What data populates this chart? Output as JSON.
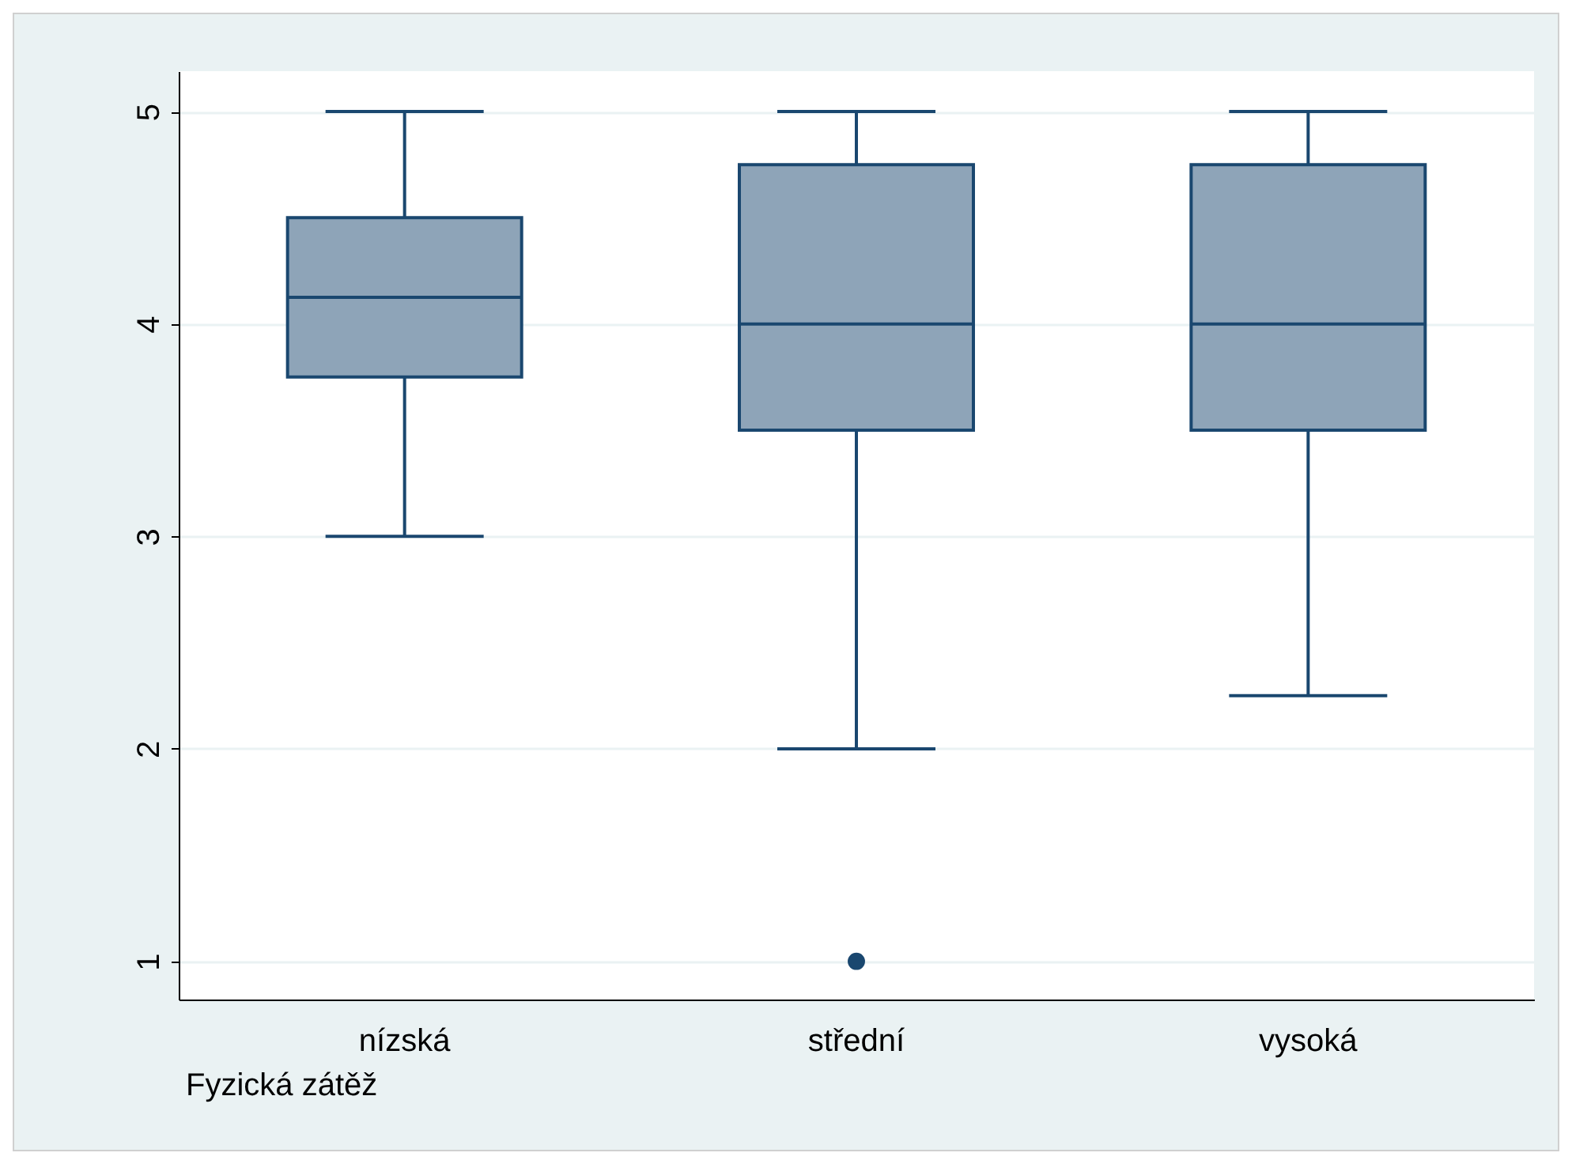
{
  "chart_data": {
    "type": "box",
    "categories": [
      "nízská",
      "střední",
      "vysoká"
    ],
    "boxes": [
      {
        "low": 3,
        "q1": 3.75,
        "median": 4.125,
        "q3": 4.5,
        "high": 5
      },
      {
        "low": 2,
        "q1": 3.5,
        "median": 4,
        "q3": 4.75,
        "high": 5,
        "outliers": [
          1
        ]
      },
      {
        "low": 2.25,
        "q1": 3.5,
        "median": 4,
        "q3": 4.75,
        "high": 5
      }
    ],
    "color": "#8ea4b8",
    "xlabel": "Fyzická zátěž",
    "ylim": [
      0.82,
      5.19
    ],
    "yticks": [
      1,
      2,
      3,
      4,
      5
    ],
    "grid": "y"
  }
}
